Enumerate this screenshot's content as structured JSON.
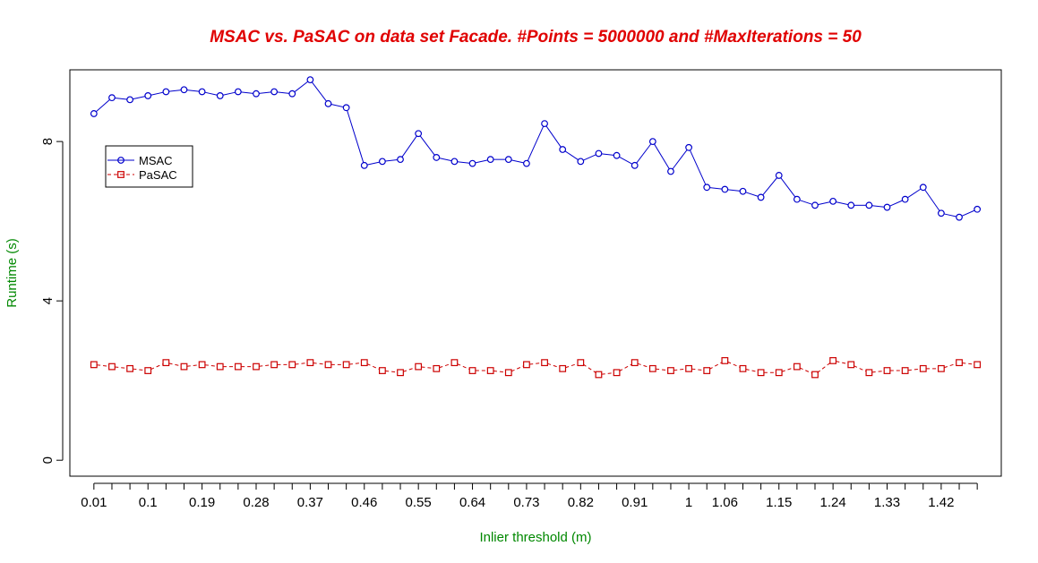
{
  "chart_data": {
    "type": "line",
    "title": "MSAC vs. PaSAC on data set Facade. #Points = 5000000 and #MaxIterations = 50",
    "xlabel": "Inlier threshold (m)",
    "ylabel": "Runtime (s)",
    "x": [
      0.01,
      0.04,
      0.07,
      0.1,
      0.13,
      0.16,
      0.19,
      0.22,
      0.25,
      0.28,
      0.31,
      0.34,
      0.37,
      0.4,
      0.43,
      0.46,
      0.49,
      0.52,
      0.55,
      0.58,
      0.61,
      0.64,
      0.67,
      0.7,
      0.73,
      0.76,
      0.79,
      0.82,
      0.85,
      0.88,
      0.91,
      0.94,
      0.97,
      1.0,
      1.03,
      1.06,
      1.09,
      1.12,
      1.15,
      1.18,
      1.21,
      1.24,
      1.27,
      1.3,
      1.33,
      1.36,
      1.39,
      1.42,
      1.45,
      1.48
    ],
    "xticks": [
      {
        "value": 0.01,
        "label": "0.01"
      },
      {
        "value": 0.1,
        "label": "0.1"
      },
      {
        "value": 0.19,
        "label": "0.19"
      },
      {
        "value": 0.28,
        "label": "0.28"
      },
      {
        "value": 0.37,
        "label": "0.37"
      },
      {
        "value": 0.46,
        "label": "0.46"
      },
      {
        "value": 0.55,
        "label": "0.55"
      },
      {
        "value": 0.64,
        "label": "0.64"
      },
      {
        "value": 0.73,
        "label": "0.73"
      },
      {
        "value": 0.82,
        "label": "0.82"
      },
      {
        "value": 0.91,
        "label": "0.91"
      },
      {
        "value": 1.0,
        "label": "1"
      },
      {
        "value": 1.06,
        "label": "1.06"
      },
      {
        "value": 1.15,
        "label": "1.15"
      },
      {
        "value": 1.24,
        "label": "1.24"
      },
      {
        "value": 1.33,
        "label": "1.33"
      },
      {
        "value": 1.42,
        "label": "1.42"
      }
    ],
    "yticks": [
      {
        "value": 0,
        "label": "0"
      },
      {
        "value": 4,
        "label": "4"
      },
      {
        "value": 8,
        "label": "8"
      }
    ],
    "xlim": [
      -0.03,
      1.52
    ],
    "ylim": [
      -0.4,
      9.8
    ],
    "legend_position": "top-left",
    "grid": false,
    "colors": {
      "title": "#e00000",
      "axis_label": "#008800",
      "msac": "#0000cc",
      "pasac": "#cc0000"
    },
    "series": [
      {
        "name": "MSAC",
        "marker": "circle",
        "line": "solid",
        "values": [
          8.7,
          9.1,
          9.05,
          9.15,
          9.25,
          9.3,
          9.25,
          9.15,
          9.25,
          9.2,
          9.25,
          9.2,
          9.55,
          8.95,
          8.85,
          7.4,
          7.5,
          7.55,
          8.2,
          7.6,
          7.5,
          7.45,
          7.55,
          7.55,
          7.45,
          8.45,
          7.8,
          7.5,
          7.7,
          7.65,
          7.4,
          8.0,
          7.25,
          7.85,
          6.85,
          6.8,
          6.75,
          6.6,
          7.15,
          6.55,
          6.4,
          6.5,
          6.4,
          6.4,
          6.35,
          6.55,
          6.85,
          6.2,
          6.1,
          6.3
        ]
      },
      {
        "name": "PaSAC",
        "marker": "square",
        "line": "dashed",
        "values": [
          2.4,
          2.35,
          2.3,
          2.25,
          2.45,
          2.35,
          2.4,
          2.35,
          2.35,
          2.35,
          2.4,
          2.4,
          2.45,
          2.4,
          2.4,
          2.45,
          2.25,
          2.2,
          2.35,
          2.3,
          2.45,
          2.25,
          2.25,
          2.2,
          2.4,
          2.45,
          2.3,
          2.45,
          2.15,
          2.2,
          2.45,
          2.3,
          2.25,
          2.3,
          2.25,
          2.5,
          2.3,
          2.2,
          2.2,
          2.35,
          2.15,
          2.5,
          2.4,
          2.2,
          2.25,
          2.25,
          2.3,
          2.3,
          2.45,
          2.4
        ]
      }
    ]
  }
}
